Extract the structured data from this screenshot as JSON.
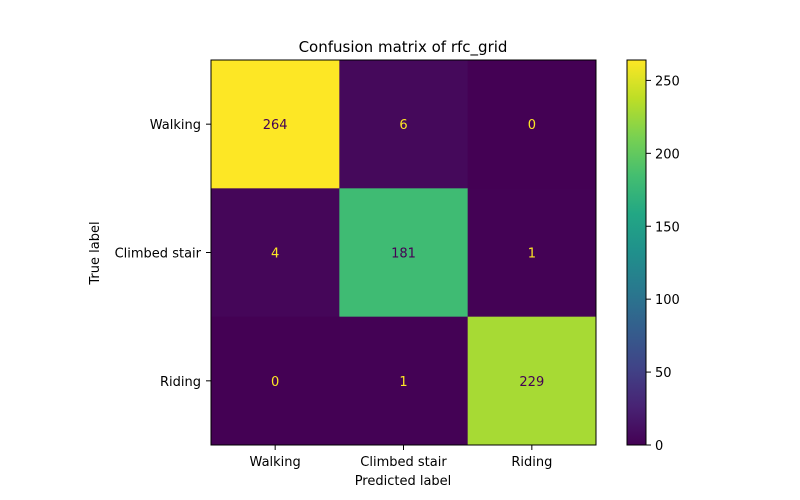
{
  "chart_data": {
    "type": "heatmap",
    "title": "Confusion matrix of rfc_grid",
    "xlabel": "Predicted label",
    "ylabel": "True label",
    "x_categories": [
      "Walking",
      "Climbed stair",
      "Riding"
    ],
    "y_categories": [
      "Walking",
      "Climbed stair",
      "Riding"
    ],
    "values": [
      [
        264,
        6,
        0
      ],
      [
        4,
        181,
        1
      ],
      [
        0,
        1,
        229
      ]
    ],
    "colormap": "viridis",
    "colorbar": {
      "range": [
        0,
        264
      ],
      "ticks": [
        0,
        50,
        100,
        150,
        200,
        250
      ]
    },
    "text_colors": {
      "on_dark": "#fde725",
      "on_light": "#440154"
    }
  }
}
